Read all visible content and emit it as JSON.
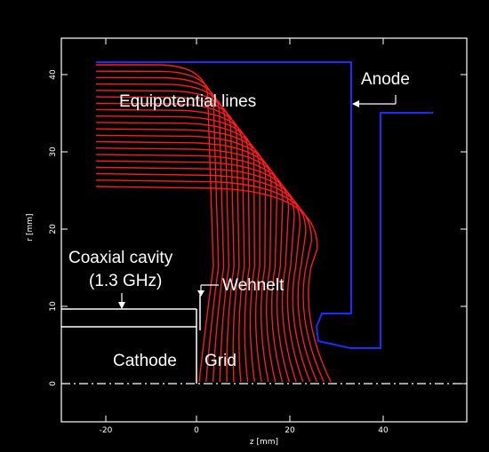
{
  "figure": {
    "xlabel": "z [mm]",
    "ylabel": "r [mm]",
    "xlim": [
      -28,
      55
    ],
    "ylim": [
      -5,
      46
    ],
    "xticks": [
      "-20",
      "0",
      "20",
      "40"
    ],
    "yticks": [
      "0",
      "10",
      "20",
      "30",
      "40"
    ],
    "colors": {
      "background": "#000000",
      "equipotential": "#ff1a1a",
      "electrode": "#1a2cff",
      "structure": "#ffffff"
    }
  },
  "annotations": {
    "equipotential_lines": "Equipotential lines",
    "anode": "Anode",
    "coaxial_cavity_line1": "Coaxial cavity",
    "coaxial_cavity_line2": "(1.3 GHz)",
    "wehnelt": "Wehnelt",
    "cathode": "Cathode",
    "grid": "Grid"
  }
}
